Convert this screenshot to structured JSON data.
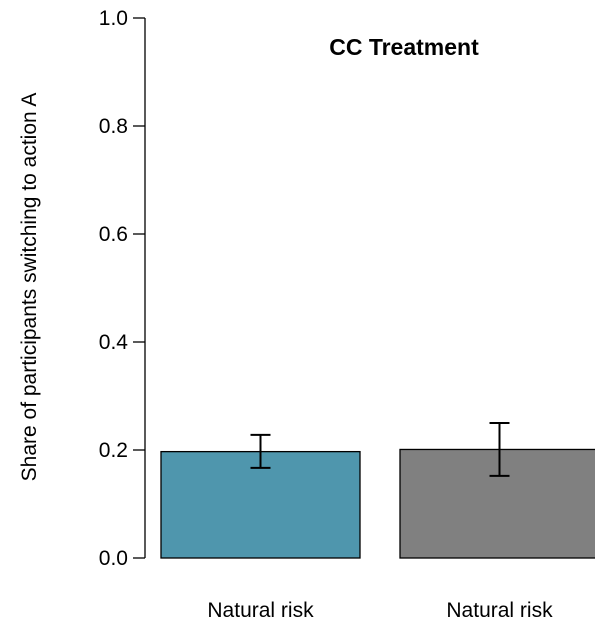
{
  "chart_data": {
    "type": "bar",
    "title": "CC Treatment",
    "ylabel": "Share of participants switching to action A",
    "xlabel": "",
    "categories": [
      "Natural risk",
      "Natural risk"
    ],
    "values": [
      0.197,
      0.201
    ],
    "error_low": [
      0.167,
      0.152
    ],
    "error_high": [
      0.228,
      0.25
    ],
    "colors": [
      "#4f96ad",
      "#808080"
    ],
    "ylim": [
      0,
      1.0
    ],
    "yticks": [
      "0.0",
      "0.2",
      "0.4",
      "0.6",
      "0.8",
      "1.0"
    ],
    "ytick_values": [
      0,
      0.2,
      0.4,
      0.6,
      0.8,
      1.0
    ],
    "grid": false,
    "legend": "none"
  }
}
